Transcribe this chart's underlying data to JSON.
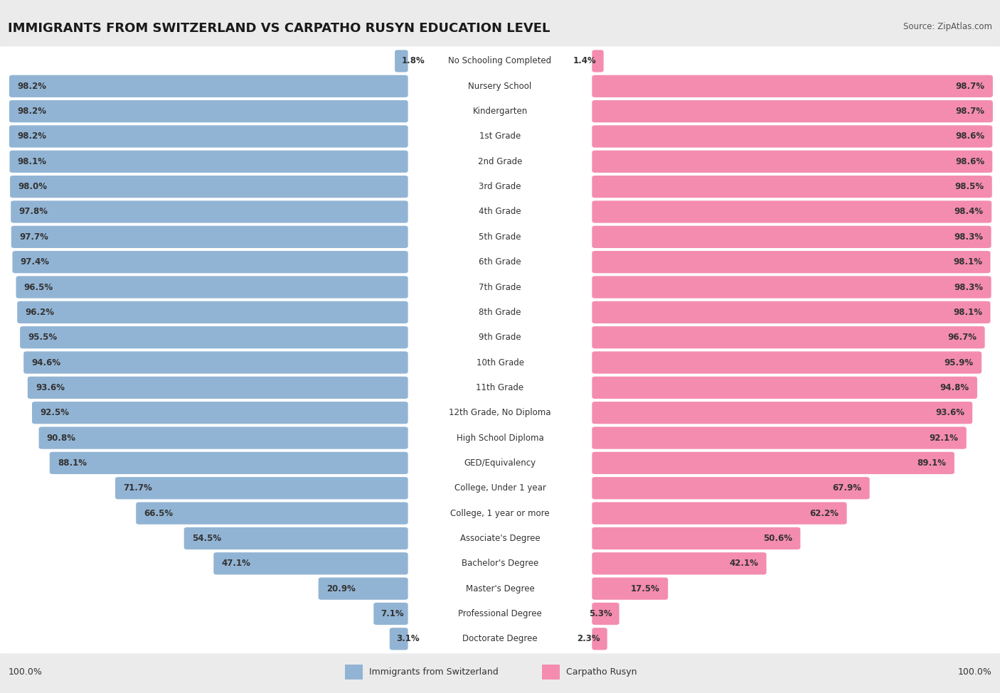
{
  "title": "IMMIGRANTS FROM SWITZERLAND VS CARPATHO RUSYN EDUCATION LEVEL",
  "source": "Source: ZipAtlas.com",
  "categories": [
    "No Schooling Completed",
    "Nursery School",
    "Kindergarten",
    "1st Grade",
    "2nd Grade",
    "3rd Grade",
    "4th Grade",
    "5th Grade",
    "6th Grade",
    "7th Grade",
    "8th Grade",
    "9th Grade",
    "10th Grade",
    "11th Grade",
    "12th Grade, No Diploma",
    "High School Diploma",
    "GED/Equivalency",
    "College, Under 1 year",
    "College, 1 year or more",
    "Associate's Degree",
    "Bachelor's Degree",
    "Master's Degree",
    "Professional Degree",
    "Doctorate Degree"
  ],
  "switzerland_values": [
    1.8,
    98.2,
    98.2,
    98.2,
    98.1,
    98.0,
    97.8,
    97.7,
    97.4,
    96.5,
    96.2,
    95.5,
    94.6,
    93.6,
    92.5,
    90.8,
    88.1,
    71.7,
    66.5,
    54.5,
    47.1,
    20.9,
    7.1,
    3.1
  ],
  "carpatho_values": [
    1.4,
    98.7,
    98.7,
    98.6,
    98.6,
    98.5,
    98.4,
    98.3,
    98.1,
    98.3,
    98.1,
    96.7,
    95.9,
    94.8,
    93.6,
    92.1,
    89.1,
    67.9,
    62.2,
    50.6,
    42.1,
    17.5,
    5.3,
    2.3
  ],
  "switzerland_color": "#92b4d4",
  "carpatho_color": "#f48cb0",
  "background_color": "#ebebeb",
  "bar_background": "#ffffff",
  "title_fontsize": 13,
  "category_fontsize": 8.5,
  "value_fontsize": 8.5,
  "source_fontsize": 8.5,
  "legend_label_switzerland": "Immigrants from Switzerland",
  "legend_label_carpatho": "Carpatho Rusyn",
  "x_axis_label_left": "100.0%",
  "x_axis_label_right": "100.0%"
}
